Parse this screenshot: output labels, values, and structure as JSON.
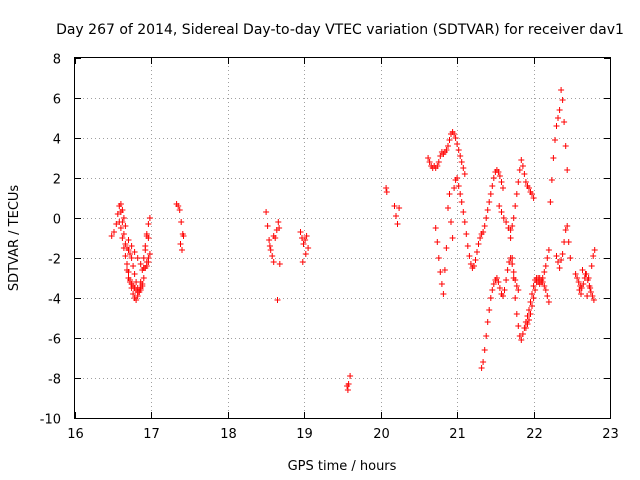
{
  "chart_data": {
    "type": "scatter",
    "title": "Day 267 of 2014, Sidereal Day-to-day VTEC variation (SDTVAR) for receiver dav1",
    "xlabel": "GPS time / hours",
    "ylabel": "SDTVAR / TECUs",
    "xlim": [
      16,
      23
    ],
    "ylim": [
      -10,
      8
    ],
    "xticks": [
      "16",
      "17",
      "18",
      "19",
      "20",
      "21",
      "22",
      "23"
    ],
    "yticks": [
      "-10",
      "-8",
      "-6",
      "-4",
      "-2",
      "0",
      "2",
      "4",
      "6",
      "8"
    ],
    "grid": true,
    "legend": "none",
    "marker": "+",
    "color": "#ff0000",
    "series": [
      {
        "name": "SDTVAR",
        "x": [
          16.48,
          16.51,
          16.54,
          16.56,
          16.58,
          16.6,
          16.62,
          16.64,
          16.66,
          16.68,
          16.7,
          16.72,
          16.74,
          16.76,
          16.78,
          16.8,
          16.82,
          16.84,
          16.86,
          16.88,
          16.9,
          16.92,
          16.94,
          16.96,
          16.98,
          16.58,
          16.6,
          16.62,
          16.64,
          16.66,
          16.68,
          16.7,
          16.72,
          16.74,
          16.76,
          16.78,
          16.8,
          16.82,
          16.84,
          16.86,
          16.88,
          16.9,
          16.92,
          16.94,
          16.96,
          16.98,
          16.68,
          16.7,
          16.72,
          16.74,
          16.76,
          16.78,
          16.8,
          16.82,
          16.84,
          16.86,
          16.88,
          16.9,
          16.92,
          16.94,
          16.96,
          16.6,
          16.62,
          16.64,
          16.66,
          16.7,
          16.74,
          16.78,
          16.82,
          16.86,
          16.9,
          16.94,
          16.96,
          17.33,
          17.35,
          17.37,
          17.39,
          17.41,
          17.38,
          17.4,
          17.42,
          18.5,
          18.52,
          18.54,
          18.56,
          18.58,
          18.6,
          18.62,
          18.64,
          18.66,
          18.67,
          18.55,
          18.6,
          18.65,
          18.68,
          18.95,
          18.97,
          18.99,
          19.01,
          19.03,
          19.05,
          18.98,
          19.02,
          19.56,
          19.57,
          19.58,
          19.6,
          20.07,
          20.08,
          20.18,
          20.2,
          20.22,
          20.24,
          20.62,
          20.64,
          20.66,
          20.68,
          20.7,
          20.72,
          20.74,
          20.76,
          20.78,
          20.8,
          20.82,
          20.84,
          20.86,
          20.88,
          20.9,
          20.92,
          20.94,
          20.96,
          20.98,
          21.0,
          21.02,
          21.04,
          21.06,
          21.08,
          21.1,
          20.72,
          20.74,
          20.76,
          20.78,
          20.8,
          20.82,
          20.84,
          20.86,
          20.88,
          20.9,
          20.92,
          20.94,
          20.96,
          20.98,
          21.0,
          21.02,
          21.04,
          21.06,
          21.08,
          21.1,
          21.12,
          21.14,
          21.16,
          21.18,
          21.2,
          21.22,
          21.24,
          21.26,
          21.28,
          21.3,
          21.32,
          21.34,
          21.36,
          21.38,
          21.4,
          21.42,
          21.44,
          21.46,
          21.48,
          21.5,
          21.52,
          21.54,
          21.56,
          21.58,
          21.6,
          21.32,
          21.34,
          21.36,
          21.38,
          21.4,
          21.42,
          21.44,
          21.46,
          21.48,
          21.5,
          21.52,
          21.54,
          21.56,
          21.58,
          21.6,
          21.62,
          21.64,
          21.66,
          21.68,
          21.7,
          21.72,
          21.74,
          21.76,
          21.78,
          21.8,
          21.55,
          21.58,
          21.61,
          21.64,
          21.67,
          21.7,
          21.72,
          21.74,
          21.76,
          21.78,
          21.8,
          21.82,
          21.84,
          21.86,
          21.88,
          21.9,
          21.92,
          21.94,
          21.96,
          21.98,
          22.0,
          21.7,
          21.72,
          21.74,
          21.76,
          21.78,
          21.8,
          21.82,
          21.84,
          21.86,
          21.88,
          21.9,
          21.92,
          21.94,
          21.96,
          21.98,
          22.0,
          22.02,
          22.04,
          22.06,
          22.08,
          22.1,
          22.12,
          22.14,
          22.16,
          22.18,
          22.2,
          21.9,
          21.92,
          21.94,
          21.96,
          21.98,
          22.0,
          22.02,
          22.04,
          22.06,
          22.08,
          22.1,
          22.12,
          22.14,
          22.16,
          22.18,
          22.2,
          22.22,
          22.24,
          22.26,
          22.28,
          22.3,
          22.32,
          22.34,
          22.36,
          22.38,
          22.4,
          22.42,
          22.44,
          22.3,
          22.32,
          22.34,
          22.36,
          22.38,
          22.4,
          22.42,
          22.44,
          22.46,
          22.48,
          22.55,
          22.57,
          22.59,
          22.61,
          22.63,
          22.65,
          22.67,
          22.69,
          22.71,
          22.73,
          22.75,
          22.77,
          22.79,
          22.6,
          22.64,
          22.68,
          22.72,
          22.76,
          22.78,
          22.8,
          22.62,
          22.7,
          22.74
        ],
        "y": [
          -0.9,
          -0.7,
          -0.3,
          0.2,
          0.6,
          0.3,
          -0.2,
          -0.8,
          -1.3,
          -1.5,
          -1.6,
          -1.8,
          -2.0,
          -2.4,
          -2.8,
          -3.2,
          -3.5,
          -3.7,
          -3.6,
          -3.4,
          -2.5,
          -1.6,
          -0.9,
          -0.3,
          0.0,
          -0.2,
          -0.5,
          -1.0,
          -1.5,
          -1.9,
          -2.3,
          -2.7,
          -3.1,
          -3.5,
          -3.8,
          -4.0,
          -4.1,
          -3.9,
          -3.7,
          -3.2,
          -2.6,
          -2.0,
          -1.4,
          -0.8,
          -1.0,
          -1.8,
          -2.6,
          -3.0,
          -3.2,
          -3.3,
          -3.4,
          -3.5,
          -3.6,
          -3.7,
          -3.6,
          -3.5,
          -3.3,
          -3.0,
          -2.5,
          -2.2,
          -2.0,
          0.7,
          0.4,
          0.0,
          -0.4,
          -1.1,
          -1.4,
          -1.7,
          -2.0,
          -2.3,
          -2.5,
          -2.4,
          -2.2,
          0.7,
          0.6,
          0.4,
          -0.2,
          -0.8,
          -1.3,
          -1.6,
          -0.9,
          0.3,
          -0.4,
          -1.1,
          -1.6,
          -1.9,
          -2.2,
          -1.0,
          -0.6,
          -0.2,
          -0.5,
          -1.4,
          -0.9,
          -4.1,
          -2.3,
          -0.7,
          -1.0,
          -1.3,
          -1.1,
          -0.9,
          -1.5,
          -2.2,
          -1.8,
          -8.4,
          -8.6,
          -8.3,
          -7.9,
          1.5,
          1.3,
          0.6,
          0.1,
          -0.3,
          0.5,
          3.0,
          2.8,
          2.6,
          2.5,
          2.6,
          2.5,
          2.6,
          2.8,
          3.1,
          3.3,
          3.2,
          3.3,
          3.4,
          3.6,
          3.9,
          4.2,
          4.3,
          4.2,
          4.0,
          3.7,
          3.4,
          3.1,
          2.8,
          2.5,
          2.2,
          -0.5,
          -1.2,
          -2.0,
          -2.7,
          -3.3,
          -3.8,
          -2.6,
          -1.5,
          0.5,
          1.2,
          -0.2,
          -1.0,
          1.5,
          1.9,
          2.0,
          1.6,
          1.2,
          0.8,
          0.3,
          -0.2,
          -0.8,
          -1.4,
          -1.9,
          -2.3,
          -2.5,
          -2.4,
          -2.1,
          -1.7,
          -1.3,
          -1.0,
          -0.8,
          -0.7,
          -0.4,
          0.0,
          0.4,
          0.8,
          1.2,
          1.6,
          2.0,
          2.3,
          2.4,
          2.3,
          2.1,
          1.8,
          1.5,
          -7.5,
          -7.2,
          -6.6,
          -5.9,
          -5.2,
          -4.6,
          -4.0,
          -3.6,
          -3.3,
          -3.1,
          -3.0,
          -3.2,
          -3.5,
          -3.8,
          -3.9,
          -3.6,
          -3.1,
          -2.6,
          -2.2,
          -2.0,
          -2.3,
          -2.7,
          -3.1,
          -3.4,
          -3.6,
          0.6,
          0.3,
          0.0,
          -0.2,
          -0.5,
          -0.6,
          -0.4,
          0.0,
          0.6,
          1.2,
          1.8,
          2.4,
          2.9,
          2.6,
          2.2,
          1.8,
          1.6,
          1.5,
          1.3,
          1.2,
          1.0,
          -1.0,
          -2.0,
          -3.0,
          -4.0,
          -4.8,
          -5.4,
          -5.9,
          -6.1,
          -5.8,
          -5.5,
          -5.2,
          -4.9,
          -4.6,
          -4.2,
          -3.8,
          -3.4,
          -3.1,
          -3.0,
          -3.2,
          -3.3,
          -3.2,
          -3.0,
          -2.7,
          -2.4,
          -2.0,
          -1.6,
          -5.5,
          -5.3,
          -5.1,
          -4.8,
          -4.4,
          -4.0,
          -3.6,
          -3.2,
          -3.0,
          -3.0,
          -3.1,
          -3.2,
          -3.4,
          -3.6,
          -3.9,
          -4.2,
          0.8,
          1.9,
          3.0,
          3.9,
          4.6,
          5.0,
          5.4,
          6.4,
          5.9,
          4.8,
          3.6,
          2.4,
          -1.9,
          -2.2,
          -2.5,
          -2.1,
          -1.8,
          -1.2,
          -0.6,
          -0.4,
          -1.2,
          -2.0,
          -2.8,
          -3.0,
          -3.2,
          -3.4,
          -3.5,
          -3.3,
          -3.0,
          -2.8,
          -3.1,
          -3.4,
          -3.7,
          -3.9,
          -4.1,
          -3.6,
          -2.6,
          -2.8,
          -3.0,
          -2.4,
          -1.9,
          -1.6,
          -3.8,
          -3.9,
          -3.5
        ]
      }
    ]
  }
}
